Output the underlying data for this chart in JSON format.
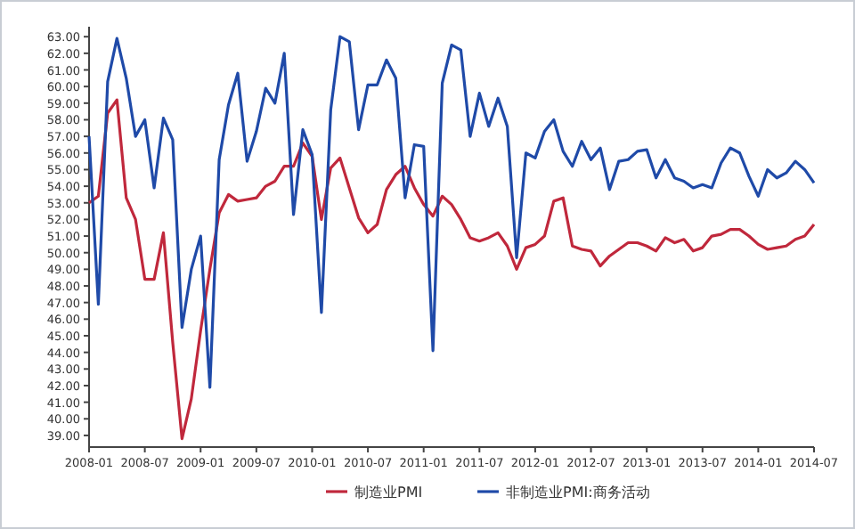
{
  "chart_data": {
    "type": "line",
    "x": [
      "2008-01",
      "2008-02",
      "2008-03",
      "2008-04",
      "2008-05",
      "2008-06",
      "2008-07",
      "2008-08",
      "2008-09",
      "2008-10",
      "2008-11",
      "2008-12",
      "2009-01",
      "2009-02",
      "2009-03",
      "2009-04",
      "2009-05",
      "2009-06",
      "2009-07",
      "2009-08",
      "2009-09",
      "2009-10",
      "2009-11",
      "2009-12",
      "2010-01",
      "2010-02",
      "2010-03",
      "2010-04",
      "2010-05",
      "2010-06",
      "2010-07",
      "2010-08",
      "2010-09",
      "2010-10",
      "2010-11",
      "2010-12",
      "2011-01",
      "2011-02",
      "2011-03",
      "2011-04",
      "2011-05",
      "2011-06",
      "2011-07",
      "2011-08",
      "2011-09",
      "2011-10",
      "2011-11",
      "2011-12",
      "2012-01",
      "2012-02",
      "2012-03",
      "2012-04",
      "2012-05",
      "2012-06",
      "2012-07",
      "2012-08",
      "2012-09",
      "2012-10",
      "2012-11",
      "2012-12",
      "2013-01",
      "2013-02",
      "2013-03",
      "2013-04",
      "2013-05",
      "2013-06",
      "2013-07",
      "2013-08",
      "2013-09",
      "2013-10",
      "2013-11",
      "2013-12",
      "2014-01",
      "2014-02",
      "2014-03",
      "2014-04",
      "2014-05",
      "2014-06",
      "2014-07"
    ],
    "series": [
      {
        "name": "制造业PMI",
        "color": "#c0283c",
        "values": [
          53.0,
          53.4,
          58.4,
          59.2,
          53.3,
          52.0,
          48.4,
          48.4,
          51.2,
          44.6,
          38.8,
          41.2,
          45.3,
          49.0,
          52.4,
          53.5,
          53.1,
          53.2,
          53.3,
          54.0,
          54.3,
          55.2,
          55.2,
          56.6,
          55.8,
          52.0,
          55.1,
          55.7,
          53.9,
          52.1,
          51.2,
          51.7,
          53.8,
          54.7,
          55.2,
          53.9,
          52.9,
          52.2,
          53.4,
          52.9,
          52.0,
          50.9,
          50.7,
          50.9,
          51.2,
          50.4,
          49.0,
          50.3,
          50.5,
          51.0,
          53.1,
          53.3,
          50.4,
          50.2,
          50.1,
          49.2,
          49.8,
          50.2,
          50.6,
          50.6,
          50.4,
          50.1,
          50.9,
          50.6,
          50.8,
          50.1,
          50.3,
          51.0,
          51.1,
          51.4,
          51.4,
          51.0,
          50.5,
          50.2,
          50.3,
          50.4,
          50.8,
          51.0,
          51.7
        ]
      },
      {
        "name": "非制造业PMI:商务活动",
        "color": "#1f4aa8",
        "values": [
          57.0,
          46.9,
          60.3,
          62.9,
          60.5,
          57.0,
          58.0,
          53.9,
          58.1,
          56.8,
          45.5,
          49.0,
          51.0,
          41.9,
          55.6,
          58.9,
          60.8,
          55.5,
          57.3,
          59.9,
          59.0,
          62.0,
          52.3,
          57.4,
          55.9,
          46.4,
          58.6,
          63.0,
          62.7,
          57.4,
          60.1,
          60.1,
          61.6,
          60.5,
          53.3,
          56.5,
          56.4,
          44.1,
          60.2,
          62.5,
          62.2,
          57.0,
          59.6,
          57.6,
          59.3,
          57.6,
          49.7,
          56.0,
          55.7,
          57.3,
          58.0,
          56.1,
          55.2,
          56.7,
          55.6,
          56.3,
          53.8,
          55.5,
          55.6,
          56.1,
          56.2,
          54.5,
          55.6,
          54.5,
          54.3,
          53.9,
          54.1,
          53.9,
          55.4,
          56.3,
          56.0,
          54.6,
          53.4,
          55.0,
          54.5,
          54.8,
          55.5,
          55.0,
          54.2
        ]
      }
    ],
    "xlim": [
      "2008-01",
      "2014-07"
    ],
    "xticks": [
      "2008-01",
      "2008-07",
      "2009-01",
      "2009-07",
      "2010-01",
      "2010-07",
      "2011-01",
      "2011-07",
      "2012-01",
      "2012-07",
      "2013-01",
      "2013-07",
      "2014-01",
      "2014-07"
    ],
    "ylim": [
      38.3,
      63.6
    ],
    "yticks": [
      {
        "value": 39,
        "label": "39.00"
      },
      {
        "value": 40,
        "label": "40.00"
      },
      {
        "value": 41,
        "label": "41.00"
      },
      {
        "value": 42,
        "label": "42.00"
      },
      {
        "value": 43,
        "label": "43.00"
      },
      {
        "value": 44,
        "label": "44.00"
      },
      {
        "value": 45,
        "label": "45.00"
      },
      {
        "value": 46,
        "label": "46.00"
      },
      {
        "value": 47,
        "label": "47.00"
      },
      {
        "value": 48,
        "label": "48.00"
      },
      {
        "value": 49,
        "label": "49.00"
      },
      {
        "value": 50,
        "label": "50.00"
      },
      {
        "value": 51,
        "label": "51.00"
      },
      {
        "value": 52,
        "label": "52.00"
      },
      {
        "value": 53,
        "label": "53.00"
      },
      {
        "value": 54,
        "label": "54.00"
      },
      {
        "value": 55,
        "label": "55.00"
      },
      {
        "value": 56,
        "label": "56.00"
      },
      {
        "value": 57,
        "label": "57.00"
      },
      {
        "value": 58,
        "label": "58.00"
      },
      {
        "value": 59,
        "label": "59.00"
      },
      {
        "value": 60,
        "label": "60.00"
      },
      {
        "value": 61,
        "label": "61.00"
      },
      {
        "value": 62,
        "label": "62.00"
      },
      {
        "value": 63,
        "label": "63.00"
      }
    ],
    "legend": "bottom",
    "grid": false,
    "marker": "none",
    "line_style": "solid"
  }
}
